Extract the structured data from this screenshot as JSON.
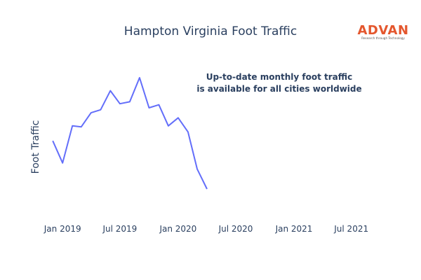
{
  "logo": {
    "name": "ADVAN",
    "tagline": "Research through Technology",
    "color": "#e4572e"
  },
  "annotation": {
    "line1": "Up-to-date monthly foot traffic",
    "line2": "is available for all cities worldwide"
  },
  "chart_data": {
    "type": "line",
    "title": "Hampton Virginia Foot Traffic",
    "xlabel": "",
    "ylabel": "Foot Traffic",
    "grid": false,
    "legend": "none",
    "line_color": "#636efa",
    "x_tick_labels": [
      "Jan 2019",
      "Jul 2019",
      "Jan 2020",
      "Jul 2020",
      "Jan 2021",
      "Jul 2021"
    ],
    "xlim": [
      "2018-11-15",
      "2021-09-15"
    ],
    "ylim": [
      0,
      100
    ],
    "series": [
      {
        "x": [
          "2018-12-01",
          "2019-01-01",
          "2019-02-01",
          "2019-03-01",
          "2019-04-01",
          "2019-05-01",
          "2019-06-01",
          "2019-07-01",
          "2019-08-01",
          "2019-09-01",
          "2019-10-01",
          "2019-11-01",
          "2019-12-01",
          "2020-01-01",
          "2020-02-01",
          "2020-03-01",
          "2020-04-01"
        ],
        "values": [
          48,
          26,
          63,
          62,
          76,
          79,
          98,
          85,
          87,
          111,
          81,
          84,
          63,
          71,
          57,
          20,
          0
        ]
      }
    ]
  }
}
